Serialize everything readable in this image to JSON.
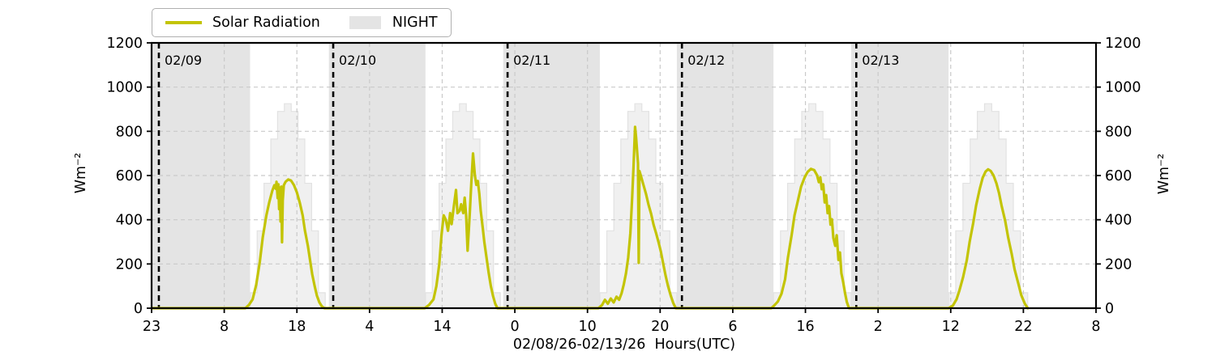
{
  "legend": {
    "items": [
      {
        "label": "Solar Radiation",
        "swatch": "line"
      },
      {
        "label": "NIGHT",
        "swatch": "patch"
      }
    ]
  },
  "chart_data": {
    "type": "line",
    "title": "",
    "xlabel": "02/08/26-02/13/26  Hours(UTC)",
    "ylabel_left": "Wm⁻²",
    "ylabel_right": "Wm⁻²",
    "x_axis_note": "x unit = hours since first tick (23:00 02/08/26 UTC); axis spans 130 hours",
    "x_range": [
      0,
      130
    ],
    "y_range": [
      0,
      1200
    ],
    "grid": true,
    "legend_position": "top-left",
    "x_ticks": [
      {
        "u": 0,
        "label": "23"
      },
      {
        "u": 10,
        "label": "8"
      },
      {
        "u": 20,
        "label": "18"
      },
      {
        "u": 30,
        "label": "4"
      },
      {
        "u": 40,
        "label": "14"
      },
      {
        "u": 50,
        "label": "0"
      },
      {
        "u": 60,
        "label": "10"
      },
      {
        "u": 70,
        "label": "20"
      },
      {
        "u": 80,
        "label": "6"
      },
      {
        "u": 90,
        "label": "16"
      },
      {
        "u": 100,
        "label": "2"
      },
      {
        "u": 110,
        "label": "12"
      },
      {
        "u": 120,
        "label": "22"
      },
      {
        "u": 130,
        "label": "8"
      }
    ],
    "y_ticks": [
      {
        "value": 0,
        "label": "0"
      },
      {
        "value": 200,
        "label": "200"
      },
      {
        "value": 400,
        "label": "400"
      },
      {
        "value": 600,
        "label": "600"
      },
      {
        "value": 800,
        "label": "800"
      },
      {
        "value": 1000,
        "label": "1000"
      },
      {
        "value": 1200,
        "label": "1200"
      }
    ],
    "date_lines": [
      {
        "u": 1,
        "label": "02/09"
      },
      {
        "u": 25,
        "label": "02/10"
      },
      {
        "u": 49,
        "label": "02/11"
      },
      {
        "u": 73,
        "label": "02/12"
      },
      {
        "u": 97,
        "label": "02/13"
      }
    ],
    "night_periods": [
      [
        0,
        13.55
      ],
      [
        24.4,
        37.7
      ],
      [
        48.4,
        61.7
      ],
      [
        72.3,
        85.6
      ],
      [
        96.3,
        109.7
      ]
    ],
    "clear_sky_steps": {
      "values": [
        70,
        350,
        565,
        765,
        890,
        925,
        890,
        765,
        565,
        350,
        70
      ],
      "day_spans": [
        [
          13.6,
          23.9
        ],
        [
          37.7,
          48.0
        ],
        [
          61.7,
          72.3
        ],
        [
          85.6,
          96.3
        ],
        [
          109.7,
          120.6
        ]
      ]
    },
    "series": [
      {
        "name": "Solar Radiation",
        "color": "#c3c405",
        "points": [
          [
            0,
            0
          ],
          [
            12.9,
            0
          ],
          [
            13.4,
            15
          ],
          [
            13.9,
            40
          ],
          [
            14.4,
            105
          ],
          [
            14.9,
            210
          ],
          [
            15.3,
            320
          ],
          [
            15.8,
            420
          ],
          [
            16.2,
            480
          ],
          [
            16.6,
            530
          ],
          [
            16.9,
            556
          ],
          [
            17.1,
            540
          ],
          [
            17.2,
            572
          ],
          [
            17.35,
            498
          ],
          [
            17.45,
            560
          ],
          [
            17.55,
            448
          ],
          [
            17.65,
            545
          ],
          [
            17.75,
            392
          ],
          [
            17.85,
            550
          ],
          [
            17.95,
            298
          ],
          [
            18.05,
            488
          ],
          [
            18.2,
            556
          ],
          [
            18.45,
            572
          ],
          [
            18.8,
            582
          ],
          [
            19.2,
            577
          ],
          [
            19.6,
            557
          ],
          [
            20.0,
            524
          ],
          [
            20.4,
            477
          ],
          [
            20.8,
            419
          ],
          [
            21.1,
            352
          ],
          [
            21.5,
            284
          ],
          [
            21.8,
            219
          ],
          [
            22.1,
            154
          ],
          [
            22.45,
            99
          ],
          [
            22.75,
            57
          ],
          [
            23.1,
            26
          ],
          [
            23.45,
            8
          ],
          [
            23.8,
            0
          ],
          [
            24.5,
            0
          ],
          [
            37.6,
            0
          ],
          [
            38.2,
            15
          ],
          [
            38.8,
            40
          ],
          [
            39.2,
            100
          ],
          [
            39.6,
            200
          ],
          [
            39.9,
            330
          ],
          [
            40.2,
            420
          ],
          [
            40.5,
            400
          ],
          [
            40.8,
            350
          ],
          [
            41.1,
            430
          ],
          [
            41.3,
            380
          ],
          [
            41.6,
            460
          ],
          [
            41.9,
            535
          ],
          [
            42.1,
            430
          ],
          [
            42.4,
            440
          ],
          [
            42.6,
            470
          ],
          [
            42.9,
            430
          ],
          [
            43.1,
            500
          ],
          [
            43.3,
            420
          ],
          [
            43.5,
            260
          ],
          [
            43.8,
            430
          ],
          [
            44.0,
            560
          ],
          [
            44.25,
            700
          ],
          [
            44.5,
            600
          ],
          [
            44.7,
            558
          ],
          [
            44.9,
            575
          ],
          [
            45.1,
            520
          ],
          [
            45.3,
            440
          ],
          [
            45.6,
            360
          ],
          [
            45.8,
            300
          ],
          [
            46.1,
            230
          ],
          [
            46.4,
            160
          ],
          [
            46.7,
            100
          ],
          [
            47.0,
            55
          ],
          [
            47.3,
            20
          ],
          [
            47.6,
            0
          ],
          [
            48.2,
            0
          ],
          [
            61.5,
            0
          ],
          [
            62.0,
            14
          ],
          [
            62.4,
            38
          ],
          [
            62.8,
            20
          ],
          [
            63.2,
            44
          ],
          [
            63.6,
            26
          ],
          [
            64.0,
            52
          ],
          [
            64.35,
            38
          ],
          [
            64.7,
            68
          ],
          [
            65.0,
            108
          ],
          [
            65.3,
            158
          ],
          [
            65.6,
            228
          ],
          [
            65.9,
            340
          ],
          [
            66.15,
            500
          ],
          [
            66.35,
            650
          ],
          [
            66.55,
            820
          ],
          [
            66.7,
            770
          ],
          [
            66.85,
            700
          ],
          [
            66.95,
            655
          ],
          [
            67.05,
            205
          ],
          [
            67.15,
            620
          ],
          [
            67.35,
            598
          ],
          [
            67.7,
            558
          ],
          [
            68.05,
            518
          ],
          [
            68.4,
            468
          ],
          [
            68.75,
            428
          ],
          [
            69.1,
            378
          ],
          [
            69.45,
            338
          ],
          [
            69.8,
            296
          ],
          [
            70.1,
            256
          ],
          [
            70.45,
            198
          ],
          [
            70.75,
            148
          ],
          [
            71.1,
            98
          ],
          [
            71.45,
            58
          ],
          [
            71.8,
            24
          ],
          [
            72.15,
            0
          ],
          [
            72.5,
            0
          ],
          [
            85.3,
            0
          ],
          [
            85.7,
            12
          ],
          [
            86.2,
            30
          ],
          [
            86.7,
            65
          ],
          [
            87.2,
            130
          ],
          [
            87.6,
            230
          ],
          [
            88.1,
            330
          ],
          [
            88.5,
            420
          ],
          [
            89.0,
            492
          ],
          [
            89.4,
            550
          ],
          [
            89.9,
            592
          ],
          [
            90.3,
            616
          ],
          [
            90.75,
            630
          ],
          [
            91.2,
            625
          ],
          [
            91.6,
            601
          ],
          [
            91.85,
            570
          ],
          [
            92.05,
            592
          ],
          [
            92.25,
            538
          ],
          [
            92.45,
            560
          ],
          [
            92.65,
            478
          ],
          [
            92.85,
            512
          ],
          [
            93.05,
            430
          ],
          [
            93.25,
            462
          ],
          [
            93.45,
            378
          ],
          [
            93.65,
            402
          ],
          [
            93.85,
            318
          ],
          [
            94.1,
            282
          ],
          [
            94.3,
            330
          ],
          [
            94.55,
            218
          ],
          [
            94.75,
            252
          ],
          [
            94.95,
            158
          ],
          [
            95.2,
            118
          ],
          [
            95.45,
            68
          ],
          [
            95.7,
            28
          ],
          [
            96.0,
            0
          ],
          [
            96.4,
            0
          ],
          [
            109.7,
            0
          ],
          [
            110.3,
            12
          ],
          [
            110.8,
            40
          ],
          [
            111.2,
            80
          ],
          [
            111.7,
            140
          ],
          [
            112.2,
            215
          ],
          [
            112.6,
            300
          ],
          [
            113.1,
            385
          ],
          [
            113.5,
            465
          ],
          [
            114.0,
            540
          ],
          [
            114.4,
            590
          ],
          [
            114.8,
            618
          ],
          [
            115.15,
            628
          ],
          [
            115.5,
            621
          ],
          [
            115.9,
            600
          ],
          [
            116.3,
            564
          ],
          [
            116.65,
            520
          ],
          [
            117.0,
            464
          ],
          [
            117.5,
            394
          ],
          [
            117.9,
            320
          ],
          [
            118.4,
            245
          ],
          [
            118.8,
            175
          ],
          [
            119.3,
            112
          ],
          [
            119.7,
            60
          ],
          [
            120.2,
            20
          ],
          [
            120.6,
            0
          ]
        ]
      }
    ],
    "colors": {
      "line": "#c3c405",
      "night": "#e4e4e4",
      "clear_sky_fill": "#f0f0f0",
      "clear_sky_edge": "#e2e2e2",
      "grid": "#c9c9c9",
      "date_line": "#000000",
      "date_label": "#3c3c3c",
      "spine": "#000000"
    }
  }
}
